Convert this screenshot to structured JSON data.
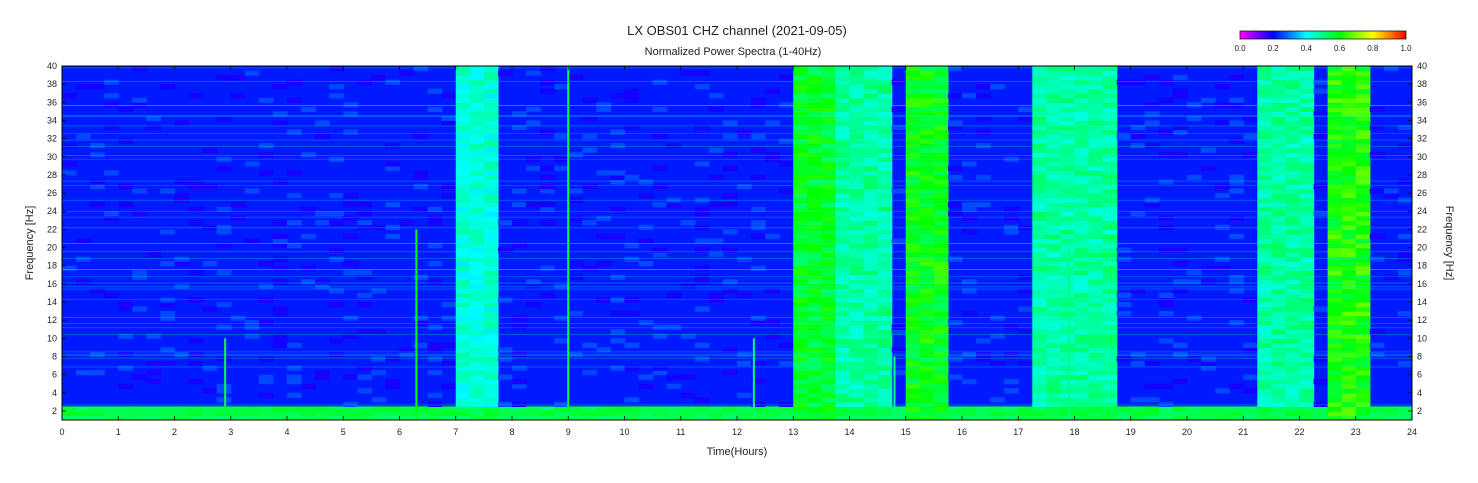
{
  "chart_data": {
    "type": "heatmap",
    "title": "LX OBS01  CHZ channel (2021-09-05)",
    "subtitle": "Normalized Power Spectra (1-40Hz)",
    "xlabel": "Time(Hours)",
    "ylabel": "Frequency [Hz]",
    "xlim": [
      0,
      24
    ],
    "ylim": [
      1,
      40
    ],
    "x_ticks": [
      "0",
      "1",
      "2",
      "3",
      "4",
      "5",
      "6",
      "7",
      "8",
      "9",
      "10",
      "11",
      "12",
      "13",
      "14",
      "15",
      "16",
      "17",
      "18",
      "19",
      "20",
      "21",
      "22",
      "23",
      "24"
    ],
    "y_ticks": [
      "2",
      "4",
      "6",
      "8",
      "10",
      "12",
      "14",
      "16",
      "18",
      "20",
      "22",
      "24",
      "26",
      "28",
      "30",
      "32",
      "34",
      "36",
      "38",
      "40"
    ],
    "colorbar": {
      "range": [
        0,
        1
      ],
      "ticks": [
        "0.0",
        "0.2",
        "0.4",
        "0.6",
        "0.8",
        "1.0"
      ],
      "colors": [
        "#ff00ff",
        "#0000ff",
        "#00ffff",
        "#00ff00",
        "#ffff00",
        "#ff0000"
      ]
    },
    "background_level": 0.22,
    "low_frequency_band": {
      "freq_range": [
        1,
        2.5
      ],
      "level": 0.55
    },
    "broadband_events": [
      {
        "time_range": [
          7.3,
          7.45
        ],
        "level": 0.45
      },
      {
        "time_range": [
          13.2,
          13.5
        ],
        "level": 0.6
      },
      {
        "time_range": [
          14.1,
          14.5
        ],
        "level": 0.5
      },
      {
        "time_range": [
          15.2,
          15.5
        ],
        "level": 0.62
      },
      {
        "time_range": [
          17.4,
          18.5
        ],
        "level": 0.5
      },
      {
        "time_range": [
          21.6,
          21.9
        ],
        "level": 0.5
      },
      {
        "time_range": [
          22.7,
          23.0
        ],
        "level": 0.65
      }
    ],
    "spikes": [
      {
        "time": 2.9,
        "freq_max": 10,
        "level": 0.55
      },
      {
        "time": 6.3,
        "freq_max": 22,
        "level": 0.6
      },
      {
        "time": 9.0,
        "freq_max": 40,
        "level": 0.55
      },
      {
        "time": 12.3,
        "freq_max": 10,
        "level": 0.5
      },
      {
        "time": 14.8,
        "freq_max": 8,
        "level": 0.5
      },
      {
        "time": 17.9,
        "freq_max": 20,
        "level": 0.5
      }
    ]
  }
}
